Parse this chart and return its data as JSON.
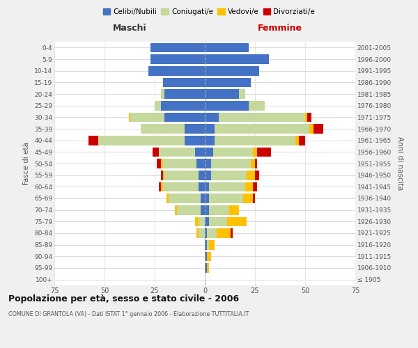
{
  "age_groups": [
    "100+",
    "95-99",
    "90-94",
    "85-89",
    "80-84",
    "75-79",
    "70-74",
    "65-69",
    "60-64",
    "55-59",
    "50-54",
    "45-49",
    "40-44",
    "35-39",
    "30-34",
    "25-29",
    "20-24",
    "15-19",
    "10-14",
    "5-9",
    "0-4"
  ],
  "birth_years": [
    "≤ 1905",
    "1906-1910",
    "1911-1915",
    "1916-1920",
    "1921-1925",
    "1926-1930",
    "1931-1935",
    "1936-1940",
    "1941-1945",
    "1946-1950",
    "1951-1955",
    "1956-1960",
    "1961-1965",
    "1966-1970",
    "1971-1975",
    "1976-1980",
    "1981-1985",
    "1986-1990",
    "1991-1995",
    "1996-2000",
    "2001-2005"
  ],
  "colors": {
    "celibi": "#4472c4",
    "coniugati": "#c5d89d",
    "vedovi": "#ffc000",
    "divorziati": "#cc0000"
  },
  "maschi": {
    "celibi": [
      0,
      0,
      0,
      0,
      0,
      0,
      2,
      2,
      3,
      3,
      4,
      5,
      10,
      10,
      20,
      22,
      20,
      21,
      28,
      27,
      27
    ],
    "coniugati": [
      0,
      0,
      0,
      0,
      3,
      3,
      12,
      16,
      18,
      17,
      17,
      18,
      43,
      22,
      17,
      3,
      2,
      0,
      0,
      0,
      0
    ],
    "vedovi": [
      0,
      0,
      0,
      0,
      1,
      2,
      1,
      1,
      1,
      1,
      1,
      0,
      0,
      0,
      1,
      0,
      0,
      0,
      0,
      0,
      0
    ],
    "divorziati": [
      0,
      0,
      0,
      0,
      0,
      0,
      0,
      0,
      1,
      1,
      2,
      3,
      5,
      0,
      0,
      0,
      0,
      0,
      0,
      0,
      0
    ]
  },
  "femmine": {
    "celibi": [
      0,
      1,
      1,
      1,
      1,
      2,
      2,
      2,
      2,
      3,
      3,
      4,
      5,
      5,
      7,
      22,
      17,
      23,
      27,
      32,
      22
    ],
    "coniugati": [
      0,
      0,
      0,
      1,
      5,
      9,
      10,
      17,
      18,
      18,
      20,
      20,
      40,
      47,
      43,
      8,
      3,
      0,
      0,
      0,
      0
    ],
    "vedovi": [
      0,
      1,
      2,
      3,
      7,
      10,
      5,
      5,
      4,
      4,
      2,
      2,
      2,
      2,
      1,
      0,
      0,
      0,
      0,
      0,
      0
    ],
    "divorziati": [
      0,
      0,
      0,
      0,
      1,
      0,
      0,
      1,
      2,
      2,
      1,
      7,
      3,
      5,
      2,
      0,
      0,
      0,
      0,
      0,
      0
    ]
  },
  "xlim": 75,
  "title": "Popolazione per età, sesso e stato civile - 2006",
  "subtitle": "COMUNE DI GRANTOLA (VA) - Dati ISTAT 1° gennaio 2006 - Elaborazione TUTTITALIA.IT",
  "xlabel_left": "Maschi",
  "xlabel_right": "Femmine",
  "ylabel_left": "Fasce di età",
  "ylabel_right": "Anni di nascita",
  "bg_color": "#f0f0f0",
  "plot_bg": "#ffffff",
  "legend_labels": [
    "Celibi/Nubili",
    "Coniugati/e",
    "Vedovi/e",
    "Divorziati/e"
  ]
}
